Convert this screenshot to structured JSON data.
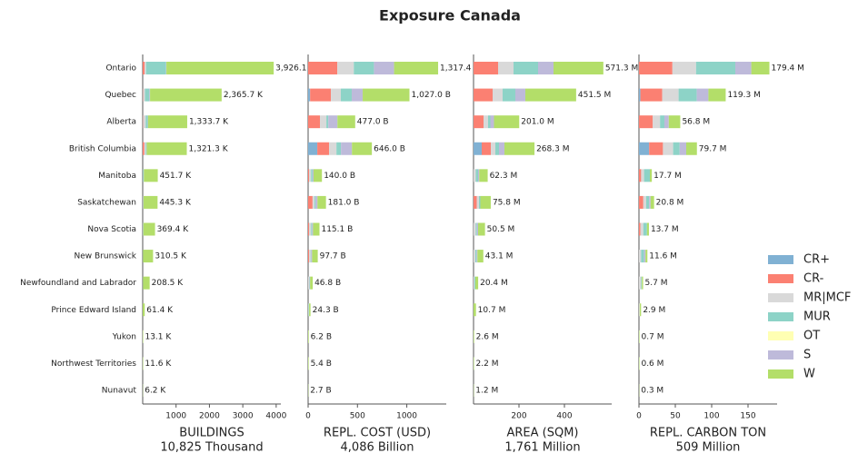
{
  "chart_data": [
    {
      "type": "bar",
      "horizontal": true,
      "title": "Exposure Canada",
      "categories": [
        "Ontario",
        "Quebec",
        "Alberta",
        "British Columbia",
        "Manitoba",
        "Saskatchewan",
        "Nova Scotia",
        "New Brunswick",
        "Newfoundland and Labrador",
        "Prince Edward Island",
        "Yukon",
        "Northwest Territories",
        "Nunavut"
      ],
      "xlabel": "BUILDINGS",
      "xlabel_sub": "10,825 Thousand",
      "xlim": [
        0,
        4140
      ],
      "xticks": [
        1000,
        2000,
        3000,
        4000
      ],
      "series": [
        {
          "name": "CR+",
          "color": "#80b1d3",
          "values": [
            0,
            0,
            0,
            0,
            0,
            0,
            0,
            0,
            0,
            0,
            0,
            0,
            0
          ]
        },
        {
          "name": "CR-",
          "color": "#fb8072",
          "values": [
            60,
            10,
            10,
            50,
            0,
            5,
            0,
            0,
            0,
            0,
            0,
            0,
            0
          ]
        },
        {
          "name": "MR|MCF",
          "color": "#d9d9d9",
          "values": [
            40,
            60,
            80,
            40,
            10,
            10,
            10,
            5,
            5,
            0,
            0,
            0,
            0
          ]
        },
        {
          "name": "MUR",
          "color": "#8dd3c7",
          "values": [
            600,
            130,
            60,
            20,
            20,
            10,
            10,
            5,
            5,
            1.4,
            0,
            0,
            0
          ]
        },
        {
          "name": "OT",
          "color": "#ffffb3",
          "values": [
            0,
            0,
            0,
            0,
            0,
            0,
            0,
            0,
            0,
            0,
            0,
            0,
            0
          ]
        },
        {
          "name": "S",
          "color": "#bebada",
          "values": [
            10,
            20,
            10,
            10,
            5,
            0,
            0,
            0,
            0,
            0,
            0,
            0,
            0
          ]
        },
        {
          "name": "W",
          "color": "#b3de69",
          "values": [
            3216.1,
            2145.7,
            1173.7,
            1201.3,
            416.7,
            420.3,
            349.4,
            300.5,
            198.5,
            60,
            13.1,
            11.6,
            6.2
          ]
        }
      ],
      "totals": [
        3926.1,
        2365.7,
        1333.7,
        1321.3,
        451.7,
        445.3,
        369.4,
        310.5,
        208.5,
        61.4,
        13.1,
        11.6,
        6.2
      ],
      "total_labels": [
        "3,926.1 K",
        "2,365.7 K",
        "1,333.7 K",
        "1,321.3 K",
        "451.7 K",
        "445.3 K",
        "369.4 K",
        "310.5 K",
        "208.5 K",
        "61.4 K",
        "13.1 K",
        "11.6 K",
        "6.2 K"
      ]
    },
    {
      "type": "bar",
      "horizontal": true,
      "xlabel": "REPL. COST (USD)",
      "xlabel_sub": "4,086 Billion",
      "xlim": [
        0,
        1400
      ],
      "xticks": [
        0,
        500,
        1000
      ],
      "series": [
        {
          "values": [
            0,
            20,
            0,
            93,
            0,
            0,
            0,
            0,
            0,
            0,
            0,
            0,
            0
          ]
        },
        {
          "values": [
            296,
            211,
            120,
            120,
            10,
            45,
            10,
            10,
            0,
            0,
            0,
            0,
            0
          ]
        },
        {
          "values": [
            167,
            100,
            65,
            74,
            20,
            20,
            20,
            15,
            10,
            5,
            0,
            0,
            0
          ]
        },
        {
          "values": [
            204,
            111,
            20,
            46,
            15,
            10,
            10,
            5,
            5,
            5,
            0,
            0,
            0
          ]
        },
        {
          "values": [
            0,
            0,
            0,
            0,
            0,
            0,
            0,
            0,
            0,
            0,
            0,
            0,
            0
          ]
        },
        {
          "values": [
            204,
            111,
            92,
            111,
            10,
            20,
            10,
            10,
            5,
            0,
            0,
            0,
            0
          ]
        },
        {
          "values": [
            446.4,
            474,
            180,
            202,
            85,
            86,
            65.1,
            57.7,
            26.8,
            14.3,
            6.2,
            5.4,
            2.7
          ]
        }
      ],
      "totals": [
        1317.4,
        1027.0,
        477.0,
        646.0,
        140.0,
        181.0,
        115.1,
        97.7,
        46.8,
        24.3,
        6.2,
        5.4,
        2.7
      ],
      "total_labels": [
        "1,317.4",
        "1,027.0 B",
        "477.0 B",
        "646.0 B",
        "140.0 B",
        "181.0 B",
        "115.1 B",
        "97.7 B",
        "46.8 B",
        "24.3 B",
        "6.2 B",
        "5.4 B",
        "2.7 B"
      ]
    },
    {
      "type": "bar",
      "horizontal": true,
      "xlabel": "AREA (SQM)",
      "xlabel_sub": "1,761 Million",
      "xlim": [
        0,
        608
      ],
      "xticks": [
        200,
        400
      ],
      "series": [
        {
          "values": [
            0,
            0,
            0,
            36,
            0,
            0,
            0,
            0,
            0,
            0,
            0,
            0,
            0
          ]
        },
        {
          "values": [
            108,
            84,
            44,
            40,
            0,
            14,
            0,
            0,
            0,
            0,
            0,
            0,
            0
          ]
        },
        {
          "values": [
            68,
            44,
            20,
            20,
            10,
            10,
            10,
            8,
            4,
            0,
            0,
            0,
            0
          ]
        },
        {
          "values": [
            108,
            56,
            10,
            16,
            10,
            6,
            5,
            5,
            4,
            0,
            0,
            0,
            0
          ]
        },
        {
          "values": [
            0,
            0,
            0,
            0,
            0,
            0,
            0,
            0,
            0,
            0,
            0,
            0,
            0
          ]
        },
        {
          "values": [
            68,
            44,
            16,
            24,
            5,
            0,
            5,
            4,
            0,
            0,
            0,
            0,
            0
          ]
        },
        {
          "values": [
            219.3,
            223.5,
            111,
            132.3,
            37.3,
            45.8,
            30.5,
            26.1,
            12.4,
            10.7,
            2.6,
            2.2,
            1.2
          ]
        }
      ],
      "totals": [
        571.3,
        451.5,
        201.0,
        268.3,
        62.3,
        75.8,
        50.5,
        43.1,
        20.4,
        10.7,
        2.6,
        2.2,
        1.2
      ],
      "total_labels": [
        "571.3 M",
        "451.5 M",
        "201.0 M",
        "268.3 M",
        "62.3 M",
        "75.8 M",
        "50.5 M",
        "43.1 M",
        "20.4 M",
        "10.7 M",
        "2.6 M",
        "2.2 M",
        "1.2 M"
      ]
    },
    {
      "type": "bar",
      "horizontal": true,
      "xlabel": "REPL. CARBON TON",
      "xlabel_sub": "509 Million",
      "xlim": [
        0,
        190
      ],
      "xticks": [
        0,
        50,
        100,
        150
      ],
      "series": [
        {
          "values": [
            0,
            2,
            0,
            14,
            0,
            0,
            0,
            0,
            0,
            0,
            0,
            0,
            0
          ]
        },
        {
          "values": [
            46,
            30,
            19,
            19,
            3,
            6,
            2,
            0,
            0,
            0,
            0,
            0,
            0
          ]
        },
        {
          "values": [
            32.5,
            22.5,
            10,
            14,
            4,
            4,
            4,
            3,
            3,
            1,
            0,
            0,
            0
          ]
        },
        {
          "values": [
            54,
            25,
            6,
            9,
            8,
            4,
            5,
            4,
            1,
            0,
            0,
            0,
            0
          ]
        },
        {
          "values": [
            0,
            0,
            0,
            0,
            0,
            0,
            0,
            0,
            0,
            0,
            0,
            0,
            0
          ]
        },
        {
          "values": [
            22,
            16,
            6,
            9,
            0,
            2,
            0,
            2,
            0,
            0,
            0,
            0,
            0
          ]
        },
        {
          "values": [
            24.9,
            23.8,
            15.8,
            14.7,
            2.7,
            4.8,
            2.7,
            2.6,
            1.7,
            1.9,
            0.7,
            0.6,
            0.3
          ]
        }
      ],
      "totals": [
        179.4,
        119.3,
        56.8,
        79.7,
        17.7,
        20.8,
        13.7,
        11.6,
        5.7,
        2.9,
        0.7,
        0.6,
        0.3
      ],
      "total_labels": [
        "179.4 M",
        "119.3 M",
        "56.8 M",
        "79.7 M",
        "17.7 M",
        "20.8 M",
        "13.7 M",
        "11.6 M",
        "5.7 M",
        "2.9 M",
        "0.7 M",
        "0.6 M",
        "0.3 M"
      ]
    }
  ]
}
